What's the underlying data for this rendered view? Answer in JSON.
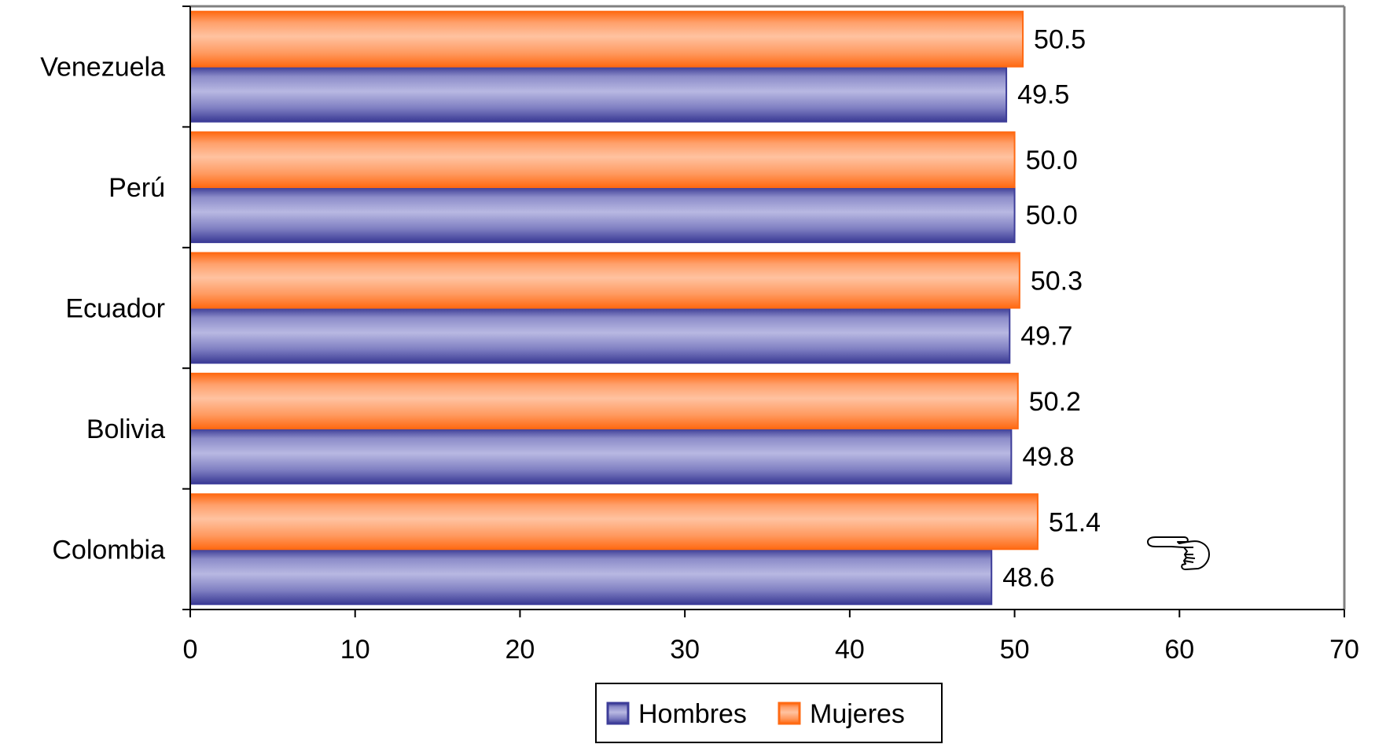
{
  "chart_data": {
    "type": "bar",
    "orientation": "horizontal",
    "categories": [
      "Colombia",
      "Bolivia",
      "Ecuador",
      "Perú",
      "Venezuela"
    ],
    "series": [
      {
        "name": "Hombres",
        "values": [
          48.6,
          49.8,
          49.7,
          50.0,
          49.5
        ],
        "labels": [
          "48.6",
          "49.8",
          "49.7",
          "50.0",
          "49.5"
        ],
        "color": "#3d3d99"
      },
      {
        "name": "Mujeres",
        "values": [
          51.4,
          50.2,
          50.3,
          50.0,
          50.5
        ],
        "labels": [
          "51.4",
          "50.2",
          "50.3",
          "50.0",
          "50.5"
        ],
        "color": "#ff6a13"
      }
    ],
    "xlim": [
      0,
      70
    ],
    "xticks": [
      "0",
      "10",
      "20",
      "30",
      "40",
      "50",
      "60",
      "70"
    ],
    "grid": false,
    "legend_position": "bottom",
    "annotation_icon": "pointing-hand-icon"
  }
}
